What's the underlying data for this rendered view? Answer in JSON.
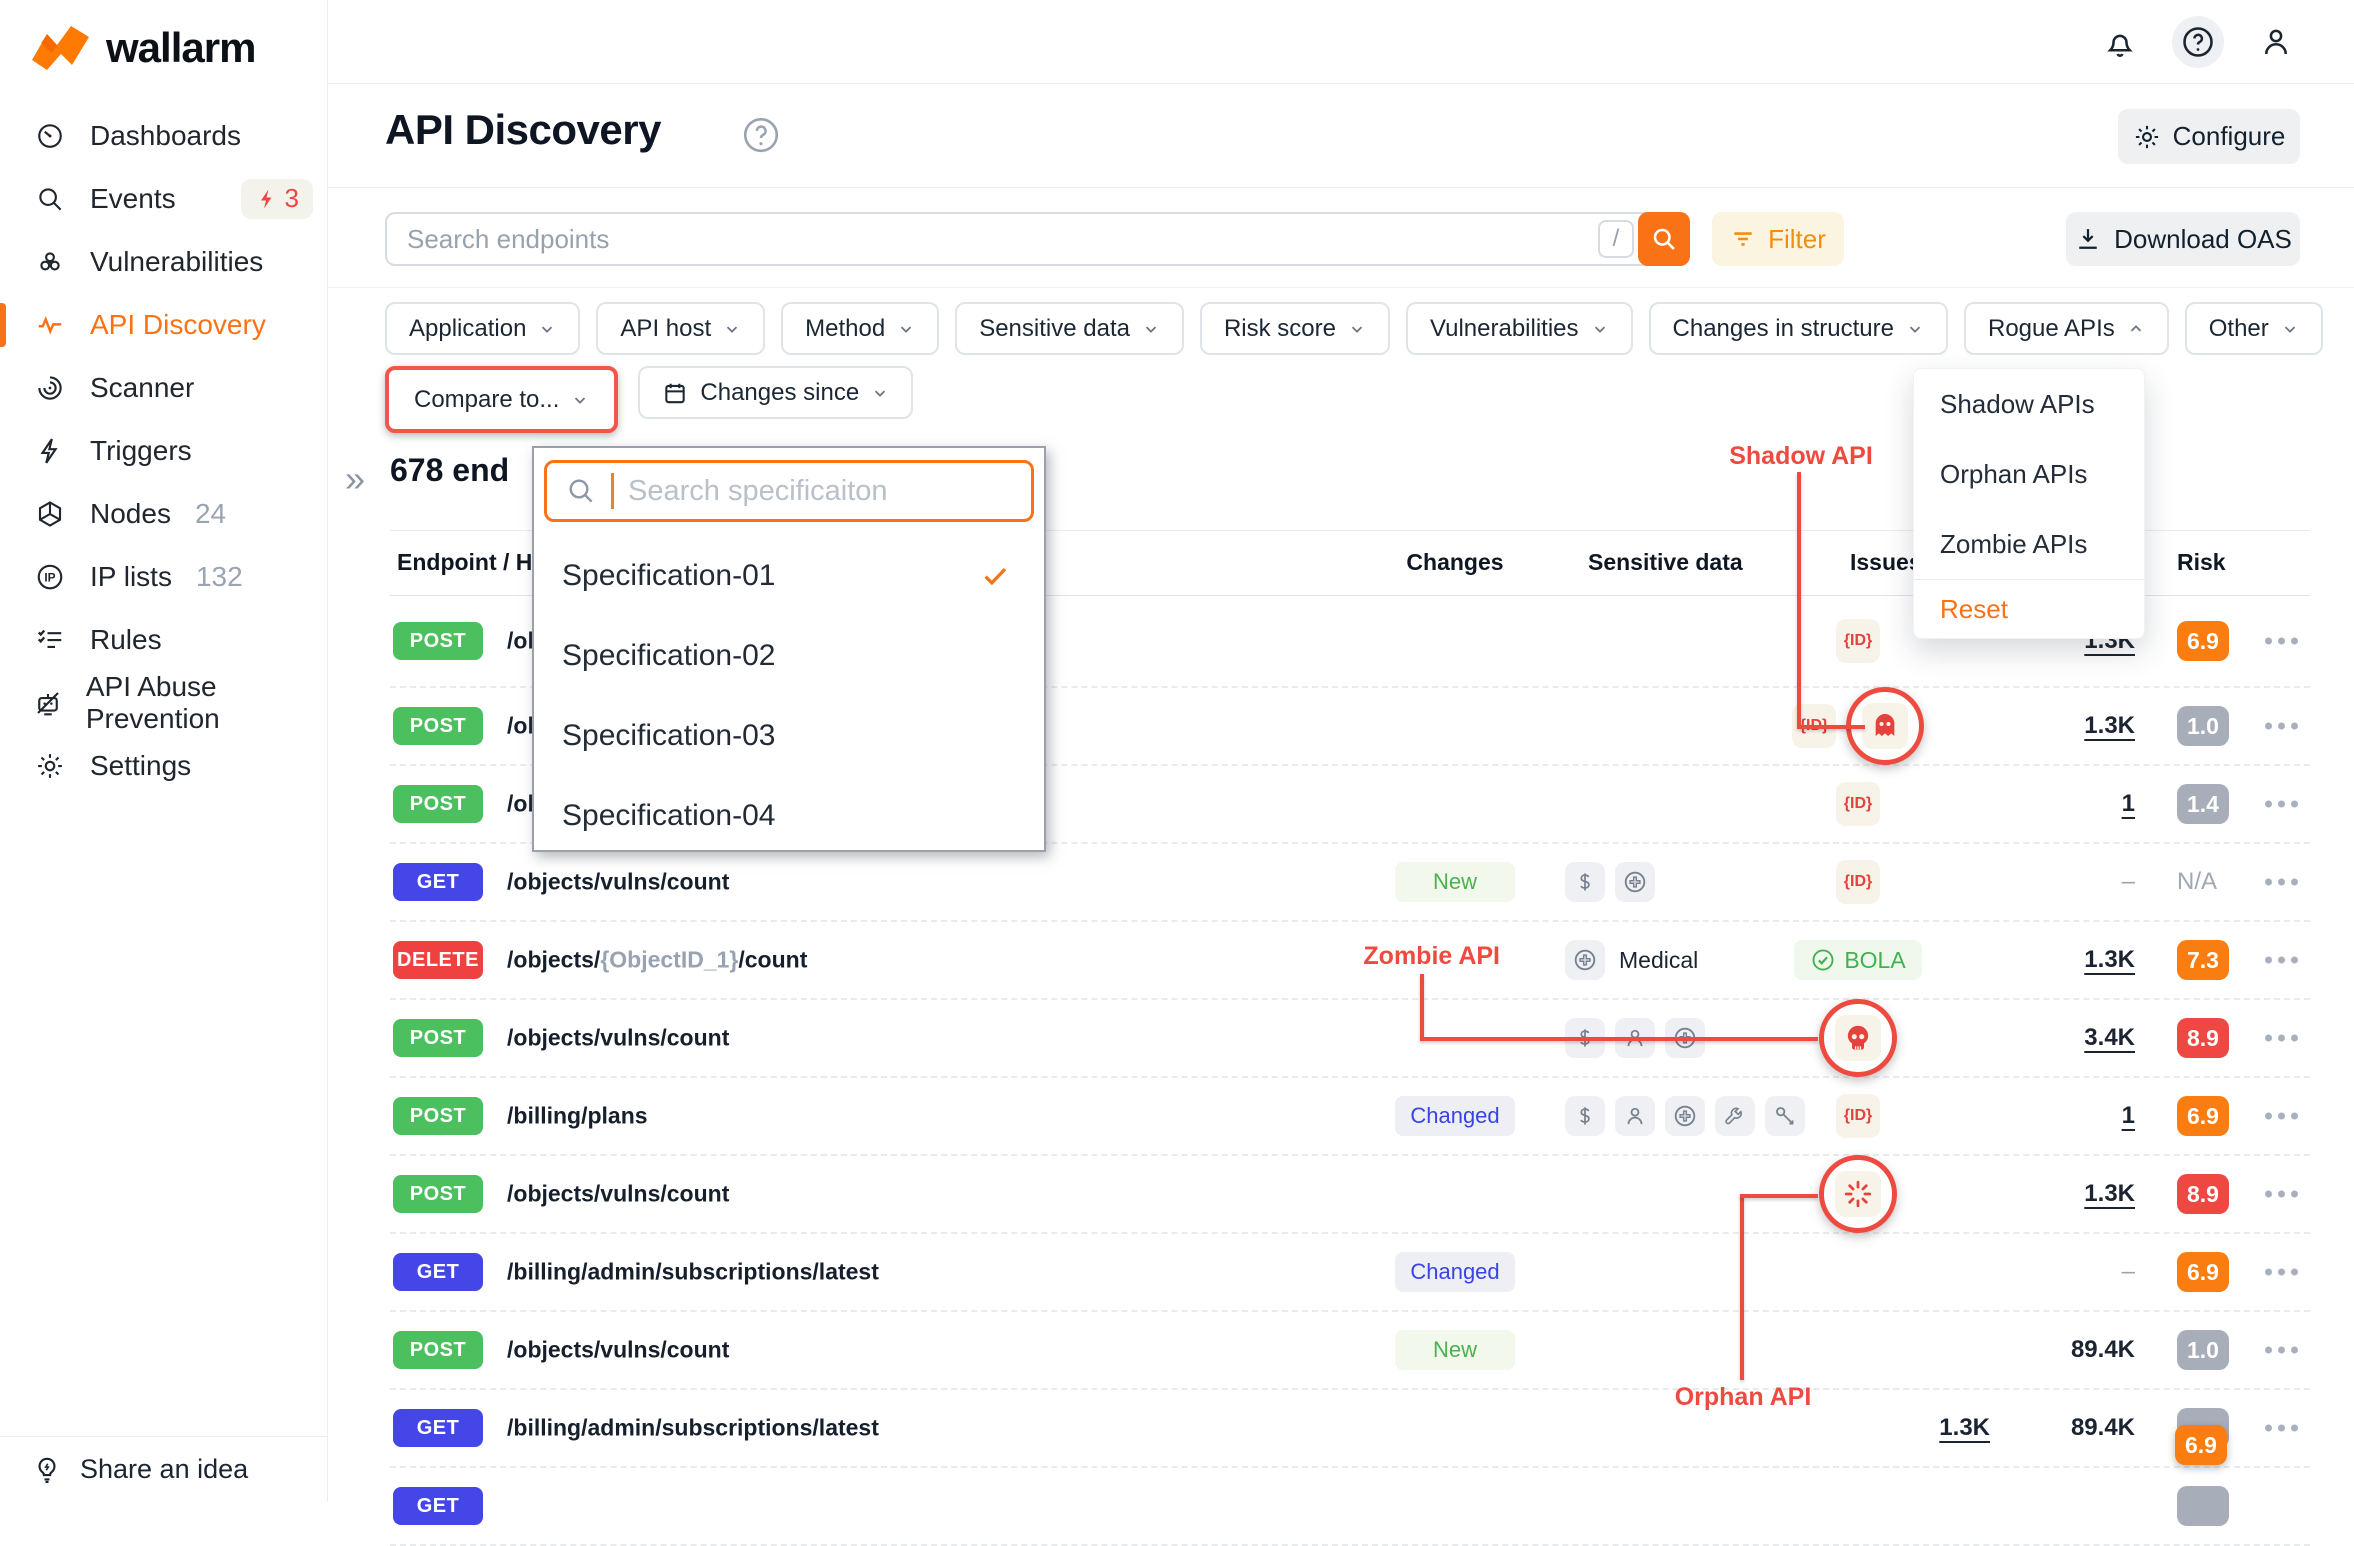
{
  "brand": {
    "name": "wallarm"
  },
  "colors": {
    "accent_orange": "#f97316",
    "annotation_red": "#ee4b40",
    "method_post": "#4cc05f",
    "method_get": "#4446e8",
    "method_delete": "#ee4140",
    "risk_orange": "#f97d10",
    "risk_red": "#ef4742",
    "risk_gray": "#a7adb9",
    "changed_blue": "#3a43e3",
    "new_green": "#4cb14f",
    "issue_red": "#e5423d"
  },
  "sidebar": {
    "items": [
      {
        "icon": "gauge-icon",
        "label": "Dashboards"
      },
      {
        "icon": "search-icon",
        "label": "Events",
        "badge": "3"
      },
      {
        "icon": "biohazard-icon",
        "label": "Vulnerabilities"
      },
      {
        "icon": "activity-icon",
        "label": "API Discovery",
        "active": true
      },
      {
        "icon": "scanner-icon",
        "label": "Scanner"
      },
      {
        "icon": "bolt-icon",
        "label": "Triggers"
      },
      {
        "icon": "hexagon-icon",
        "label": "Nodes",
        "count": "24"
      },
      {
        "icon": "ip-icon",
        "label": "IP lists",
        "count": "132"
      },
      {
        "icon": "checklist-icon",
        "label": "Rules"
      },
      {
        "icon": "bot-icon",
        "label": "API Abuse Prevention"
      },
      {
        "icon": "gear-icon",
        "label": "Settings"
      }
    ],
    "share_label": "Share an idea"
  },
  "header": {
    "title": "API Discovery",
    "configure_label": "Configure"
  },
  "search": {
    "placeholder": "Search endpoints",
    "shortcut": "/",
    "filter_label": "Filter",
    "download_label": "Download OAS"
  },
  "filters": {
    "row1": [
      {
        "label": "Application"
      },
      {
        "label": "API host"
      },
      {
        "label": "Method"
      },
      {
        "label": "Sensitive data"
      },
      {
        "label": "Risk score"
      },
      {
        "label": "Vulnerabilities"
      },
      {
        "label": "Changes in structure"
      },
      {
        "label": "Rogue APIs",
        "open": true
      },
      {
        "label": "Other"
      }
    ],
    "compare_label": "Compare to...",
    "changes_since_label": "Changes since"
  },
  "rogue_menu": {
    "items": [
      "Shadow APIs",
      "Orphan APIs",
      "Zombie APIs"
    ],
    "reset_label": "Reset"
  },
  "spec_dropdown": {
    "placeholder": "Search specificaiton",
    "options": [
      {
        "label": "Specification-01",
        "selected": true
      },
      {
        "label": "Specification-02",
        "selected": false
      },
      {
        "label": "Specification-03",
        "selected": false
      },
      {
        "label": "Specification-04",
        "selected": false
      }
    ]
  },
  "content": {
    "endpoint_count": "678 end"
  },
  "table": {
    "headers": {
      "endpoint": "Endpoint / Ho",
      "changes": "Changes",
      "sensitive": "Sensitive data",
      "issues": "Issues",
      "risk": "Risk"
    },
    "rows": [
      {
        "method": "POST",
        "path": "/ob",
        "issues": [
          "id"
        ],
        "count_b": "1.3K",
        "count_b_link": true,
        "risk": "6.9",
        "risk_level": "orange"
      },
      {
        "method": "POST",
        "path": "/ob",
        "issues": [
          "id",
          "ghost"
        ],
        "count_b": "1.3K",
        "count_b_link": true,
        "risk": "1.0",
        "risk_level": "gray"
      },
      {
        "method": "POST",
        "path": "/ob",
        "issues": [
          "id"
        ],
        "count_b": "1",
        "count_b_link": true,
        "risk": "1.4",
        "risk_level": "gray"
      },
      {
        "method": "GET",
        "path": "/objects/vulns/count",
        "changes": "New",
        "sensitive": [
          "dollar",
          "medical"
        ],
        "issues": [
          "id"
        ],
        "count_b": "–",
        "risk": "N/A",
        "risk_level": "na"
      },
      {
        "method": "DELETE",
        "path_prefix": "/objects/",
        "path_param": "{ObjectID_1}",
        "path_suffix": "/count",
        "sensitive": [
          "medical"
        ],
        "sensitive_label": "Medical",
        "issues": [
          "bola"
        ],
        "count_b": "1.3K",
        "count_b_link": true,
        "risk": "7.3",
        "risk_level": "orange"
      },
      {
        "method": "POST",
        "path": "/objects/vulns/count",
        "sensitive": [
          "dollar",
          "person",
          "medical"
        ],
        "issues": [
          "skull"
        ],
        "count_b": "3.4K",
        "count_b_link": true,
        "risk": "8.9",
        "risk_level": "red"
      },
      {
        "method": "POST",
        "path": "/billing/plans",
        "changes": "Changed",
        "sensitive": [
          "dollar",
          "person",
          "medical",
          "wrench",
          "key"
        ],
        "issues": [
          "id"
        ],
        "count_b": "1",
        "count_b_link": true,
        "risk": "6.9",
        "risk_level": "orange"
      },
      {
        "method": "POST",
        "path": "/objects/vulns/count",
        "issues": [
          "burst"
        ],
        "count_b": "1.3K",
        "count_b_link": true,
        "risk": "8.9",
        "risk_level": "red"
      },
      {
        "method": "GET",
        "path": "/billing/admin/subscriptions/latest",
        "changes": "Changed",
        "count_b": "–",
        "risk": "6.9",
        "risk_level": "orange"
      },
      {
        "method": "POST",
        "path": "/objects/vulns/count",
        "changes": "New",
        "count_b": "89.4K",
        "risk": "1.0",
        "risk_level": "gray"
      },
      {
        "method": "GET",
        "path": "/billing/admin/subscriptions/latest",
        "count_a": "1.3K",
        "count_a_link": true,
        "count_b": "89.4K",
        "risk": "",
        "risk_level": "gray",
        "risk_overlay": "6.9"
      },
      {
        "method": "GET",
        "path": "",
        "partial": true,
        "risk": "",
        "risk_level": "gray"
      }
    ],
    "issue_labels": {
      "id": "{ID}",
      "bola": "BOLA"
    }
  },
  "annotations": {
    "shadow": "Shadow API",
    "zombie": "Zombie API",
    "orphan": "Orphan API"
  }
}
